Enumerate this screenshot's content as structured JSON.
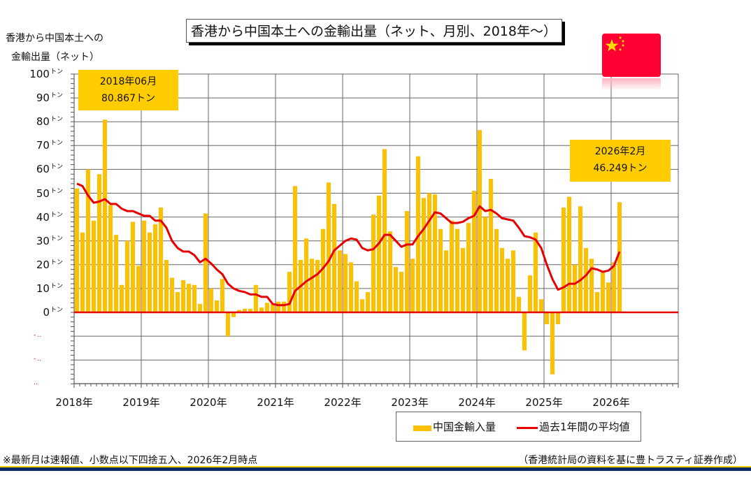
{
  "colors": {
    "bar": "#ffc000",
    "line": "#e60000",
    "callout": "#ffcc00",
    "flag": "#ff0033",
    "rule_top": "#f0d000",
    "rule_bottom": "#0a2a66"
  },
  "title": "香港から中国本土への金輸出量（ネット、月別、2018年～）",
  "y_axis_label": [
    "香港から中国本土への",
    "金輸出量（ネット）"
  ],
  "callouts": [
    {
      "line1": "2018年06月",
      "line2": "80.867トン"
    },
    {
      "line1": "2026年2月",
      "line2": "46.249トン"
    }
  ],
  "legend": {
    "bar_label": "中国金輸入量",
    "line_label": "過去1年間の平均値"
  },
  "footnote": "※最新月は速報値、小数点以下四捨五入、2026年2月時点",
  "source": "（香港統計局の資料を基に豊トラスティ証券作成）",
  "flag_icon": "china-flag-icon",
  "chart_data": {
    "type": "bar",
    "title": "香港から中国本土への金輸出量（ネット、月別、2018年～）",
    "xlabel": "",
    "ylabel": "香港から中国本土への金輸出量（ネット）",
    "ylim": [
      -30,
      100
    ],
    "y_unit": "トン",
    "y_ticks": [
      100,
      90,
      80,
      70,
      60,
      50,
      40,
      30,
      20,
      10,
      0
    ],
    "y_tick_labels": [
      "100",
      "90",
      "80",
      "70",
      "60",
      "50",
      "40",
      "30",
      "20",
      "10",
      "0"
    ],
    "y_neg_tick_labels": [
      "-‥",
      "-‥",
      "‥"
    ],
    "x_ticks": [
      "2018年",
      "2019年",
      "2020年",
      "2021年",
      "2022年",
      "2023年",
      "2024年",
      "2025年",
      "2026年"
    ],
    "x_range_years": [
      2018,
      2027
    ],
    "grid": true,
    "legend_position": "bottom-right",
    "start": "2018-01",
    "series": [
      {
        "name": "中国金輸入量",
        "type": "bar",
        "values": [
          52,
          33.5,
          60,
          38.5,
          58,
          80.867,
          45,
          32.5,
          11.5,
          30,
          38,
          19.5,
          38.5,
          33.5,
          37,
          44,
          22,
          14.5,
          8.5,
          13.5,
          12,
          11.5,
          3.5,
          41.5,
          10,
          5,
          14,
          -10,
          -2,
          1,
          1.5,
          1.5,
          11.5,
          2,
          4,
          3.5,
          4.5,
          4.5,
          17,
          53,
          22,
          31,
          22.5,
          22,
          35,
          54.5,
          45.5,
          26,
          24.5,
          21,
          13,
          5.5,
          8.5,
          41,
          49,
          68.5,
          34,
          19,
          17,
          42.5,
          22.5,
          65.5,
          48,
          50,
          49.5,
          35,
          26,
          38.5,
          35,
          27,
          37.5,
          51,
          76.5,
          40,
          56,
          35,
          27,
          22.5,
          26,
          6.5,
          -16,
          15.5,
          33.5,
          5.5,
          -5,
          -26,
          -5,
          44,
          48.5,
          20,
          44.5,
          27,
          22.5,
          8.5,
          17,
          12.5,
          21,
          46.249
        ]
      },
      {
        "name": "過去1年間の平均値",
        "type": "line",
        "values": [
          54,
          53,
          49,
          46,
          46.5,
          47.5,
          45.5,
          45.5,
          43.5,
          42.5,
          42.5,
          41.5,
          40.5,
          40.5,
          38.5,
          38.5,
          35.5,
          30,
          27,
          25.5,
          25.5,
          24,
          21,
          22.5,
          20.5,
          18,
          16,
          12,
          10,
          9,
          8.5,
          7.5,
          7.5,
          6.5,
          6.5,
          3.5,
          3,
          3,
          3.5,
          9,
          11,
          13,
          14.5,
          16,
          18.5,
          21.5,
          26,
          28,
          30,
          31,
          30.5,
          27,
          26,
          26.5,
          29,
          32.5,
          32.5,
          30,
          27.5,
          28.5,
          28.5,
          32,
          35,
          38.5,
          42,
          41.5,
          39.5,
          37.5,
          37.5,
          38,
          39.5,
          40.5,
          44.5,
          42.5,
          43,
          41.5,
          39.5,
          39,
          38.5,
          35.5,
          32,
          31.5,
          30.5,
          27,
          20,
          14,
          9.5,
          10.5,
          12,
          12,
          13.5,
          15.5,
          18.5,
          18,
          17,
          17.5,
          19.5,
          25.5
        ]
      }
    ]
  }
}
